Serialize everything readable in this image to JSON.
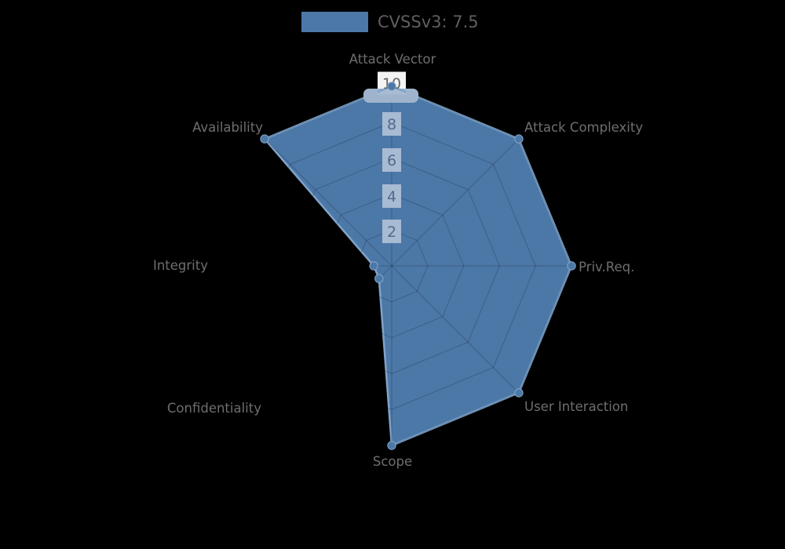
{
  "legend": {
    "label": "CVSSv3: 7.5"
  },
  "chart_data": {
    "type": "radar",
    "title": "",
    "categories": [
      "Attack Vector",
      "Attack Complexity",
      "Priv.Req.",
      "User Interaction",
      "Scope",
      "Confidentiality",
      "Integrity",
      "Availability"
    ],
    "series": [
      {
        "name": "CVSSv3: 7.5",
        "values": [
          10,
          10,
          10,
          10,
          10,
          1,
          1,
          10
        ]
      }
    ],
    "rlim": [
      0,
      10
    ],
    "ticks": [
      "2",
      "4",
      "6",
      "8",
      "10"
    ],
    "tick_values": [
      2,
      4,
      6,
      8,
      10
    ],
    "grid": true,
    "legend_position": "top",
    "colors": {
      "background": "#000000",
      "fill": "#4C78A8",
      "stroke": "#7FA3C9",
      "marker": "#4C78A8",
      "marker_border": "#83A6CB",
      "grid_line": "rgba(0,0,0,0.18)",
      "tick_backdrop": "#A7BBD3",
      "tick_backdrop_band": "#9FB4CC",
      "tick_backdrop_white": "#F4F4F4",
      "tick_text": "#56698B",
      "tick_text_top": "#666666",
      "axis_label": "#6E6E6E",
      "legend_text": "#5F5F5F"
    }
  }
}
